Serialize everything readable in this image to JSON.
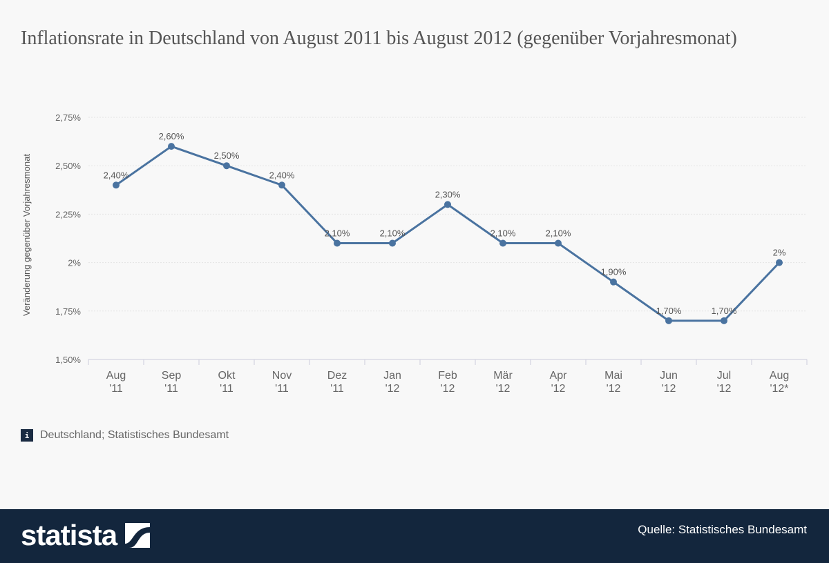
{
  "title": "Inflationsrate in Deutschland von August 2011 bis August 2012 (gegenüber Vorjahresmonat)",
  "chart_data": {
    "type": "line",
    "title": "Inflationsrate in Deutschland von August 2011 bis August 2012 (gegenüber Vorjahresmonat)",
    "xlabel": "",
    "ylabel": "Veränderung gegenüber Vorjahresmonat",
    "ylim": [
      1.5,
      2.75
    ],
    "grid": true,
    "yticks": [
      1.5,
      1.75,
      2,
      2.25,
      2.5,
      2.75
    ],
    "ytick_labels": [
      "1,50%",
      "1,75%",
      "2%",
      "2,25%",
      "2,50%",
      "2,75%"
    ],
    "categories": [
      [
        "Aug",
        "'11"
      ],
      [
        "Sep",
        "'11"
      ],
      [
        "Okt",
        "'11"
      ],
      [
        "Nov",
        "'11"
      ],
      [
        "Dez",
        "'11"
      ],
      [
        "Jan",
        "'12"
      ],
      [
        "Feb",
        "'12"
      ],
      [
        "Mär",
        "'12"
      ],
      [
        "Apr",
        "'12"
      ],
      [
        "Mai",
        "'12"
      ],
      [
        "Jun",
        "'12"
      ],
      [
        "Jul",
        "'12"
      ],
      [
        "Aug",
        "'12*"
      ]
    ],
    "values": [
      2.4,
      2.6,
      2.5,
      2.4,
      2.1,
      2.1,
      2.3,
      2.1,
      2.1,
      1.9,
      1.7,
      1.7,
      2.0
    ],
    "data_labels": [
      "2,40%",
      "2,60%",
      "2,50%",
      "2,40%",
      "2,10%",
      "2,10%",
      "2,30%",
      "2,10%",
      "2,10%",
      "1,90%",
      "1,70%",
      "1,70%",
      "2%"
    ],
    "line_color": "#4a73a0"
  },
  "info_text": "Deutschland; Statistisches Bundesamt",
  "info_icon": "i",
  "footer": {
    "logo": "statista",
    "source": "Quelle: Statistisches Bundesamt",
    "background": "#13263d"
  }
}
